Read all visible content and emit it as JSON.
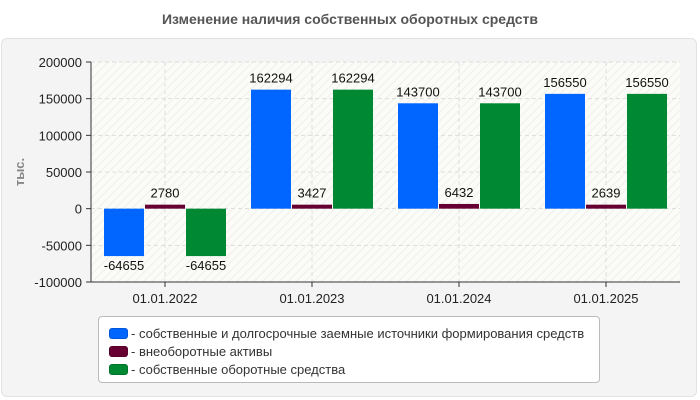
{
  "chart_data": {
    "type": "bar",
    "title": "Изменение наличия собственных оборотных средств",
    "ylabel": "тыс.",
    "xlabel": "",
    "ylim": [
      -100000,
      200000
    ],
    "yticks": [
      200000,
      150000,
      100000,
      50000,
      0,
      -50000,
      -100000
    ],
    "categories": [
      "01.01.2022",
      "01.01.2023",
      "01.01.2024",
      "01.01.2025"
    ],
    "grid": true,
    "legend_placement": "bottom",
    "series": [
      {
        "name": "- собственные и долгосрочные заемные источники формирования средств",
        "color": "#0066ff",
        "values": [
          -64655,
          162294,
          143700,
          156550
        ]
      },
      {
        "name": "- внеоборотные активы",
        "color": "#660033",
        "values": [
          2780,
          3427,
          6432,
          2639
        ]
      },
      {
        "name": "- собственные оборотные средства",
        "color": "#008833",
        "values": [
          -64655,
          162294,
          143700,
          156550
        ]
      }
    ]
  }
}
